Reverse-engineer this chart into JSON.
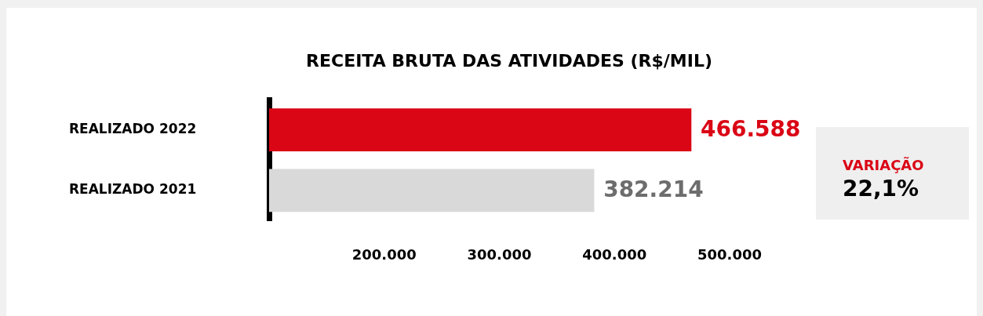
{
  "chart_data": {
    "type": "bar",
    "orientation": "horizontal",
    "title": "RECEITA BRUTA DAS ATIVIDADES (R$/MIL)",
    "categories": [
      "REALIZADO 2022",
      "REALIZADO 2021"
    ],
    "values": [
      466588,
      382214
    ],
    "colors": [
      "#da0615",
      "#d9d9d9"
    ],
    "value_labels": [
      "466.588",
      "382.214"
    ],
    "xlim": [
      100000,
      500000
    ],
    "xticks": [
      {
        "value": 200000,
        "label": "200.000"
      },
      {
        "value": 300000,
        "label": "300.000"
      },
      {
        "value": 400000,
        "label": "400.000"
      },
      {
        "value": 500000,
        "label": "500.000"
      }
    ],
    "grid": false,
    "annotations": [
      "VARIAÇÃO",
      "22,1%"
    ]
  }
}
